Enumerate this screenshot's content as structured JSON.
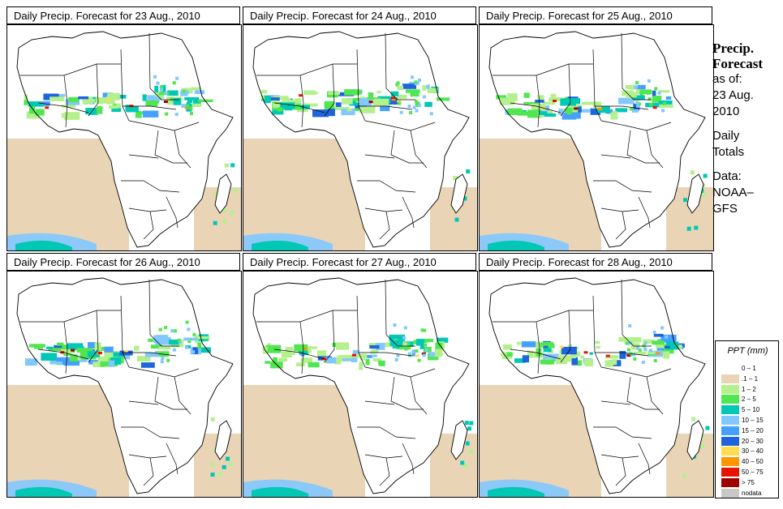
{
  "panels": [
    {
      "title": "Daily Precip. Forecast for  23 Aug., 2010"
    },
    {
      "title": "Daily Precip. Forecast for  24 Aug., 2010"
    },
    {
      "title": "Daily Precip. Forecast for  25 Aug., 2010"
    },
    {
      "title": "Daily Precip. Forecast for  26 Aug., 2010"
    },
    {
      "title": "Daily Precip. Forecast for  27 Aug., 2010"
    },
    {
      "title": "Daily Precip. Forecast for  28 Aug., 2010"
    }
  ],
  "sidebar": {
    "heading1": "Precip.",
    "heading2": "Forecast",
    "asof_label": "as of:",
    "date1": "23 Aug.",
    "date2": "2010",
    "totals1": "Daily",
    "totals2": "Totals",
    "data_label": "Data:",
    "source1": "NOAA–",
    "source2": "GFS"
  },
  "legend": {
    "title": "PPT (mm)",
    "items": [
      {
        "label": "0 – 1",
        "color": "#ffffff"
      },
      {
        "label": ".1 – 1",
        "color": "#ead4b6"
      },
      {
        "label": "1 – 2",
        "color": "#b4f08c"
      },
      {
        "label": "2 – 5",
        "color": "#50e650"
      },
      {
        "label": "5 – 10",
        "color": "#00c8b4"
      },
      {
        "label": "10 – 15",
        "color": "#82c8ff"
      },
      {
        "label": "15 – 20",
        "color": "#46a0ff"
      },
      {
        "label": "20 – 30",
        "color": "#1e64dc"
      },
      {
        "label": "30 – 40",
        "color": "#ffdc50"
      },
      {
        "label": "40 – 50",
        "color": "#ff9600"
      },
      {
        "label": "50 – 75",
        "color": "#e61400"
      },
      {
        "label": "> 75",
        "color": "#a00000"
      },
      {
        "label": "nodata",
        "color": "#c8c8c8"
      }
    ]
  }
}
